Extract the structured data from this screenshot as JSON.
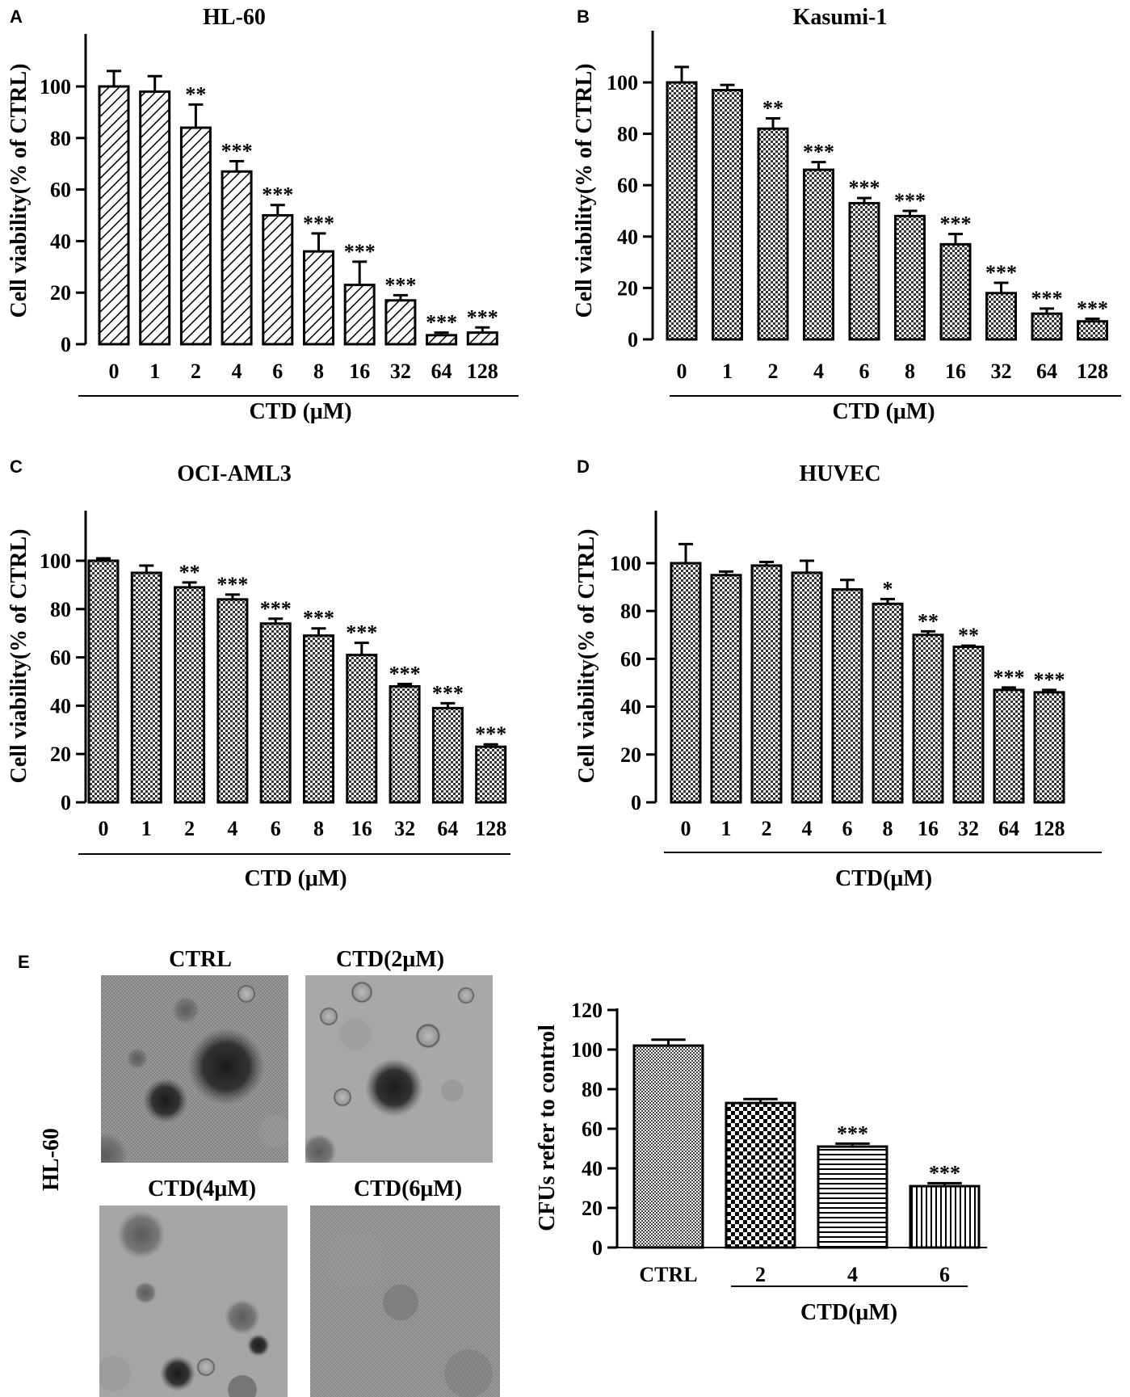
{
  "chart_data": [
    {
      "id": "A",
      "type": "bar",
      "panel_label": "A",
      "title": "HL-60",
      "xlabel": "CTD (μM)",
      "ylabel": "Cell viability(% of CTRL)",
      "ylim": [
        0,
        120
      ],
      "yticks": [
        0,
        20,
        40,
        60,
        80,
        100
      ],
      "categories": [
        "0",
        "1",
        "2",
        "4",
        "6",
        "8",
        "16",
        "32",
        "64",
        "128"
      ],
      "values": [
        100,
        98,
        84,
        67,
        50,
        36,
        23,
        17,
        3.5,
        4.5
      ],
      "errors": [
        6,
        6,
        9,
        4,
        4,
        7,
        9,
        2,
        1,
        2
      ],
      "significance": [
        "",
        "",
        "**",
        "***",
        "***",
        "***",
        "***",
        "***",
        "***",
        "***"
      ],
      "pattern": "diagonal-hatch"
    },
    {
      "id": "B",
      "type": "bar",
      "panel_label": "B",
      "title": "Kasumi-1",
      "xlabel": "CTD (μM)",
      "ylabel": "Cell viability(% of CTRL)",
      "ylim": [
        0,
        120
      ],
      "yticks": [
        0,
        20,
        40,
        60,
        80,
        100
      ],
      "categories": [
        "0",
        "1",
        "2",
        "4",
        "6",
        "8",
        "16",
        "32",
        "64",
        "128"
      ],
      "values": [
        100,
        97,
        82,
        66,
        53,
        48,
        37,
        18,
        10,
        7
      ],
      "errors": [
        6,
        2,
        4,
        3,
        2,
        2,
        4,
        4,
        2,
        1
      ],
      "significance": [
        "",
        "",
        "**",
        "***",
        "***",
        "***",
        "***",
        "***",
        "***",
        "***"
      ],
      "pattern": "checker"
    },
    {
      "id": "C",
      "type": "bar",
      "panel_label": "C",
      "title": "OCI-AML3",
      "xlabel": "CTD (μM)",
      "ylabel": "Cell viability(% of CTRL)",
      "ylim": [
        0,
        120
      ],
      "yticks": [
        0,
        20,
        40,
        60,
        80,
        100
      ],
      "categories": [
        "0",
        "1",
        "2",
        "4",
        "6",
        "8",
        "16",
        "32",
        "64",
        "128"
      ],
      "values": [
        100,
        95,
        89,
        84,
        74,
        69,
        61,
        48,
        39,
        23
      ],
      "errors": [
        1,
        3,
        2,
        2,
        2,
        3,
        5,
        1,
        2,
        1
      ],
      "significance": [
        "",
        "",
        "**",
        "***",
        "***",
        "***",
        "***",
        "***",
        "***",
        "***"
      ],
      "pattern": "checker"
    },
    {
      "id": "D",
      "type": "bar",
      "panel_label": "D",
      "title": "HUVEC",
      "xlabel": "CTD(μM)",
      "ylabel": "Cell viability(% of CTRL)",
      "ylim": [
        0,
        120
      ],
      "yticks": [
        0,
        20,
        40,
        60,
        80,
        100
      ],
      "categories": [
        "0",
        "1",
        "2",
        "4",
        "6",
        "8",
        "16",
        "32",
        "64",
        "128"
      ],
      "values": [
        100,
        95,
        99,
        96,
        89,
        83,
        70,
        65,
        47,
        46
      ],
      "errors": [
        8,
        1.5,
        1.5,
        5,
        4,
        2,
        1.5,
        0.5,
        1,
        1
      ],
      "significance": [
        "",
        "",
        "",
        "",
        "",
        "*",
        "**",
        "**",
        "***",
        "***"
      ],
      "pattern": "checker"
    },
    {
      "id": "E",
      "type": "bar",
      "panel_label": "E",
      "title": "",
      "xlabel": "CTD(μM)",
      "ylabel": "CFUs refer to control",
      "ylim": [
        0,
        120
      ],
      "yticks": [
        0,
        20,
        40,
        60,
        80,
        100,
        120
      ],
      "categories": [
        "CTRL",
        "2",
        "4",
        "6"
      ],
      "values": [
        102,
        73,
        51,
        31
      ],
      "errors": [
        3,
        2,
        1.5,
        1.5
      ],
      "significance": [
        "",
        "",
        "***",
        "***"
      ],
      "patterns": [
        "fine-checker",
        "coarse-checker",
        "horizontal-lines",
        "vertical-lines"
      ]
    }
  ],
  "micrographs": {
    "row_label": "HL-60",
    "captions": [
      "CTRL",
      "CTD(2μM)",
      "CTD(4μM)",
      "CTD(6μM)"
    ]
  },
  "colors": {
    "ink": "#000000",
    "photo_bg": "#8a8a8a"
  }
}
